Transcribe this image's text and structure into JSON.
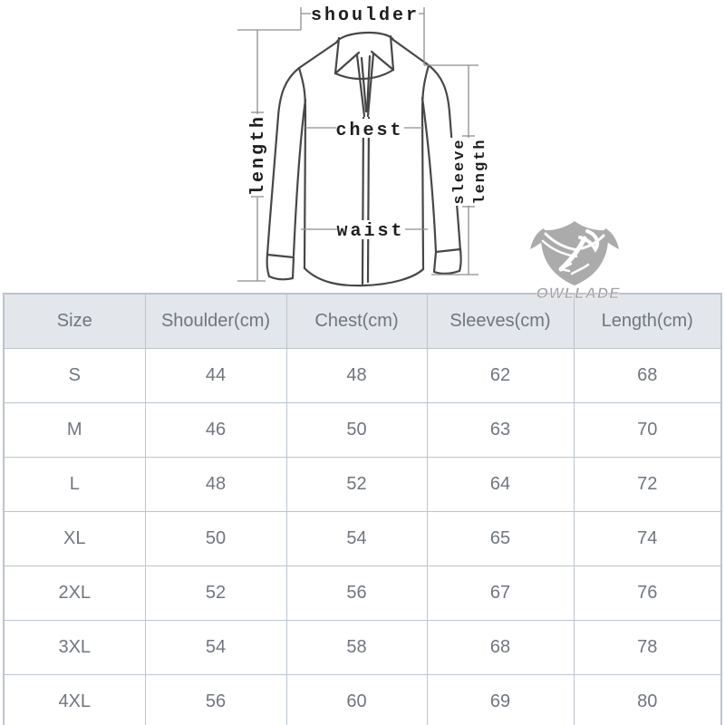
{
  "chart_data": {
    "type": "table",
    "columns": [
      "Size",
      "Shoulder(cm)",
      "Chest(cm)",
      "Sleeves(cm)",
      "Length(cm)"
    ],
    "rows": [
      [
        "S",
        "44",
        "48",
        "62",
        "68"
      ],
      [
        "M",
        "46",
        "50",
        "63",
        "70"
      ],
      [
        "L",
        "48",
        "52",
        "64",
        "72"
      ],
      [
        "XL",
        "50",
        "54",
        "65",
        "74"
      ],
      [
        "2XL",
        "52",
        "56",
        "67",
        "76"
      ],
      [
        "3XL",
        "54",
        "58",
        "68",
        "78"
      ],
      [
        "4XL",
        "56",
        "60",
        "69",
        "80"
      ]
    ]
  },
  "diagram": {
    "labels": {
      "shoulder": "shoulder",
      "chest": "chest",
      "waist": "waist",
      "length": "length",
      "sleeve_length": [
        "sleeve",
        "length"
      ]
    }
  },
  "watermark": {
    "brand": "OWLLADE"
  },
  "colors": {
    "header_bg": "#e3e6ea",
    "border": "#bcc4ce",
    "table_text": "#70767e",
    "sketch": "#474747",
    "measure": "#8e8e8e",
    "label": "#1e1e1e",
    "watermark": "#ababab",
    "watermark_text": "#a2a2a2"
  }
}
